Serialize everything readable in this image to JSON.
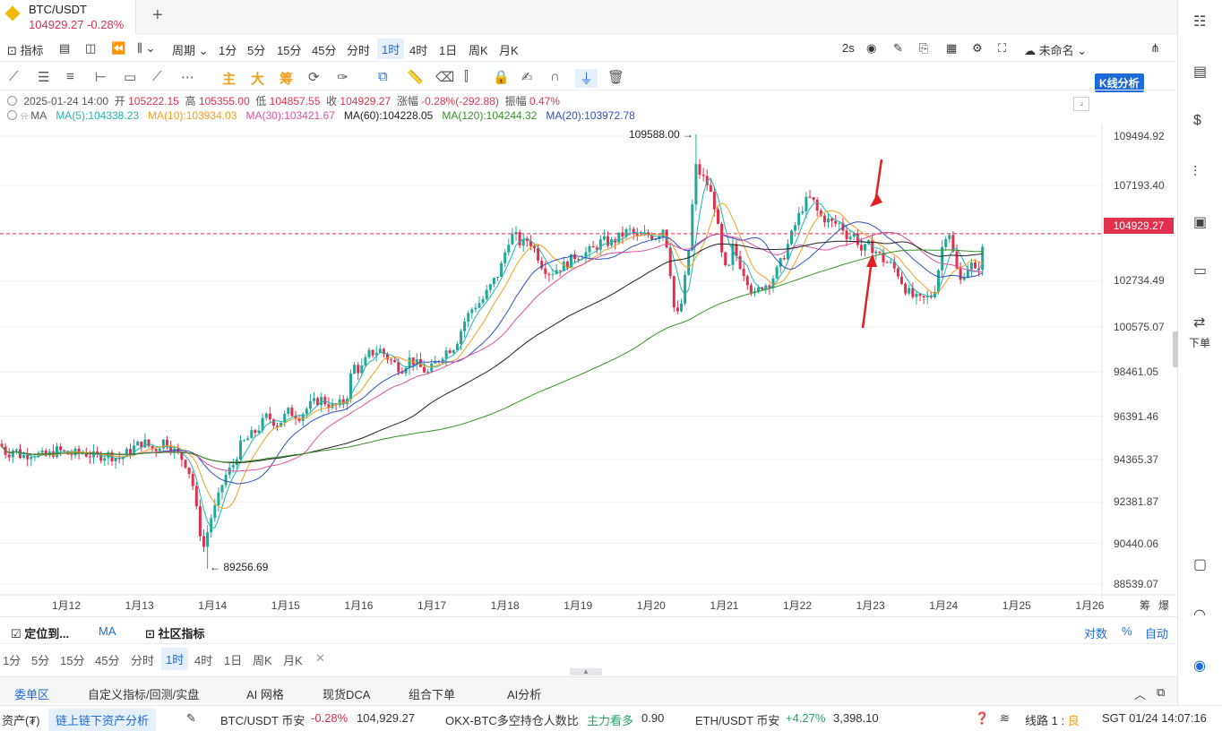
{
  "tab": {
    "symbol": "BTC/USDT",
    "price": "104929.27",
    "change": "-0.28%"
  },
  "toolbar": {
    "indicator": "指标",
    "period": "周期",
    "intervals": [
      "1分",
      "5分",
      "15分",
      "45分",
      "分时",
      "1时",
      "4时",
      "1日",
      "周K",
      "月K"
    ],
    "selected_interval": "1时",
    "refresh": "2s",
    "layout_name": "未命名",
    "kline_btn": "K线分析"
  },
  "drawtools": {
    "main": "主",
    "big": "大",
    "chip": "筹"
  },
  "ohlc": {
    "date": "2025-01-24 14:00",
    "open_label": "开",
    "open": "105222.15",
    "high_label": "高",
    "high": "105355.00",
    "low_label": "低",
    "low": "104857.55",
    "close_label": "收",
    "close": "104929.27",
    "change_label": "涨幅",
    "change": "-0.28%(-292.88)",
    "amp_label": "振幅",
    "amp": "0.47%"
  },
  "ma": {
    "label": "MA",
    "ma5": "MA(5):104338.23",
    "ma10": "MA(10):103934.03",
    "ma30": "MA(30):103421.67",
    "ma60": "MA(60):104228.05",
    "ma120": "MA(120):104244.32",
    "ma20": "MA(20):103972.78"
  },
  "colors": {
    "up": "#22a89a",
    "down": "#e0304e",
    "ma5": "#22b5a8",
    "ma10": "#f0a020",
    "ma30": "#e04fa0",
    "ma60": "#222222",
    "ma120": "#3a8f2a",
    "ma20": "#3050c0"
  },
  "chart_data": {
    "type": "candlestick",
    "ylim": [
      88539.07,
      110600
    ],
    "y_ticks": [
      "109494.92",
      "107193.40",
      "104929.27",
      "102734.49",
      "100575.07",
      "98461.05",
      "96391.46",
      "94365.37",
      "92381.87",
      "90440.06",
      "88539.07"
    ],
    "x_ticks": [
      "1月12",
      "1月13",
      "1月14",
      "1月15",
      "1月16",
      "1月17",
      "1月18",
      "1月19",
      "1月20",
      "1月21",
      "1月22",
      "1月23",
      "1月24",
      "1月25",
      "1月26"
    ],
    "last_price": 104929.27,
    "max_label": "109588.00 →",
    "min_label": "← 89256.69",
    "close_path": [
      [
        0,
        95100
      ],
      [
        8,
        94600
      ],
      [
        16,
        94900
      ],
      [
        24,
        94500
      ],
      [
        36,
        94700
      ],
      [
        50,
        94500
      ],
      [
        64,
        94800
      ],
      [
        78,
        94600
      ],
      [
        92,
        94700
      ],
      [
        106,
        94500
      ],
      [
        120,
        94600
      ],
      [
        134,
        94400
      ],
      [
        148,
        94900
      ],
      [
        160,
        95200
      ],
      [
        172,
        94800
      ],
      [
        184,
        95300
      ],
      [
        196,
        94700
      ],
      [
        206,
        94300
      ],
      [
        214,
        93500
      ],
      [
        222,
        91200
      ],
      [
        228,
        90200
      ],
      [
        234,
        91500
      ],
      [
        242,
        92300
      ],
      [
        250,
        93500
      ],
      [
        260,
        94100
      ],
      [
        268,
        95000
      ],
      [
        278,
        95400
      ],
      [
        288,
        95800
      ],
      [
        298,
        96400
      ],
      [
        310,
        96000
      ],
      [
        322,
        96600
      ],
      [
        334,
        96400
      ],
      [
        346,
        96900
      ],
      [
        358,
        97200
      ],
      [
        372,
        96800
      ],
      [
        386,
        97100
      ],
      [
        394,
        98800
      ],
      [
        402,
        98500
      ],
      [
        412,
        99300
      ],
      [
        424,
        99500
      ],
      [
        436,
        99000
      ],
      [
        448,
        98600
      ],
      [
        458,
        99100
      ],
      [
        468,
        98700
      ],
      [
        478,
        98400
      ],
      [
        486,
        98900
      ],
      [
        496,
        99400
      ],
      [
        508,
        99700
      ],
      [
        518,
        100800
      ],
      [
        528,
        101500
      ],
      [
        538,
        101800
      ],
      [
        548,
        102500
      ],
      [
        558,
        103200
      ],
      [
        568,
        104700
      ],
      [
        574,
        104900
      ],
      [
        582,
        104400
      ],
      [
        590,
        104700
      ],
      [
        598,
        104100
      ],
      [
        606,
        103400
      ],
      [
        614,
        103100
      ],
      [
        622,
        103300
      ],
      [
        632,
        103500
      ],
      [
        642,
        103900
      ],
      [
        652,
        104000
      ],
      [
        662,
        104200
      ],
      [
        672,
        104600
      ],
      [
        682,
        104500
      ],
      [
        692,
        104800
      ],
      [
        702,
        105100
      ],
      [
        712,
        104700
      ],
      [
        722,
        104900
      ],
      [
        732,
        104800
      ],
      [
        740,
        105200
      ],
      [
        746,
        104100
      ],
      [
        752,
        101500
      ],
      [
        758,
        101000
      ],
      [
        764,
        102600
      ],
      [
        770,
        104600
      ],
      [
        776,
        108100
      ],
      [
        782,
        107700
      ],
      [
        790,
        107200
      ],
      [
        798,
        106200
      ],
      [
        806,
        103800
      ],
      [
        812,
        102900
      ],
      [
        818,
        104300
      ],
      [
        826,
        103500
      ],
      [
        834,
        102800
      ],
      [
        842,
        102000
      ],
      [
        850,
        102500
      ],
      [
        858,
        102600
      ],
      [
        866,
        103100
      ],
      [
        874,
        103800
      ],
      [
        882,
        104700
      ],
      [
        890,
        105600
      ],
      [
        898,
        106400
      ],
      [
        906,
        106600
      ],
      [
        914,
        105800
      ],
      [
        922,
        105600
      ],
      [
        930,
        105400
      ],
      [
        938,
        105400
      ],
      [
        946,
        104800
      ],
      [
        954,
        104900
      ],
      [
        962,
        104100
      ],
      [
        970,
        104400
      ],
      [
        978,
        104100
      ],
      [
        986,
        103700
      ],
      [
        994,
        103500
      ],
      [
        1002,
        103100
      ],
      [
        1010,
        102400
      ],
      [
        1018,
        102000
      ],
      [
        1026,
        101800
      ],
      [
        1034,
        101900
      ],
      [
        1042,
        102100
      ],
      [
        1048,
        103400
      ],
      [
        1054,
        104900
      ],
      [
        1060,
        105000
      ],
      [
        1066,
        103500
      ],
      [
        1072,
        102700
      ],
      [
        1078,
        103300
      ],
      [
        1084,
        103500
      ],
      [
        1090,
        103000
      ],
      [
        1096,
        104000
      ],
      [
        1100,
        104929
      ]
    ],
    "highlights": [
      {
        "x": 776,
        "y": 109588
      },
      {
        "x": 232,
        "y": 89256.69
      }
    ]
  },
  "bottom": {
    "locate": "定位到...",
    "ma_tab": "MA",
    "community": "社区指标",
    "scale_log": "对数",
    "scale_pct": "%",
    "scale_auto": "自动",
    "intervals": [
      "1分",
      "5分",
      "15分",
      "45分",
      "分时",
      "1时",
      "4时",
      "1日",
      "周K",
      "月K"
    ],
    "tabs": [
      "委单区",
      "自定义指标/回测/实盘",
      "AI 网格",
      "现货DCA",
      "组合下单",
      "AI分析"
    ]
  },
  "rpanel": {
    "order": "下单"
  },
  "status": {
    "assets": "资产(₮)",
    "chain_btn": "链上链下资产分析",
    "t1_name": "BTC/USDT 币安",
    "t1_chg": "-0.28%",
    "t1_px": "104,929.27",
    "t2_name": "OKX-BTC多空持仓人数比",
    "t2_tag": "主力看多",
    "t2_val": "0.90",
    "t3_name": "ETH/USDT 币安",
    "t3_chg": "+4.27%",
    "t3_px": "3,398.10",
    "line": "线路 1 :",
    "line_q": "良",
    "time": "SGT  01/24 14:07:16"
  },
  "xaxis_extra": {
    "chip": "筹",
    "blast": "爆"
  }
}
